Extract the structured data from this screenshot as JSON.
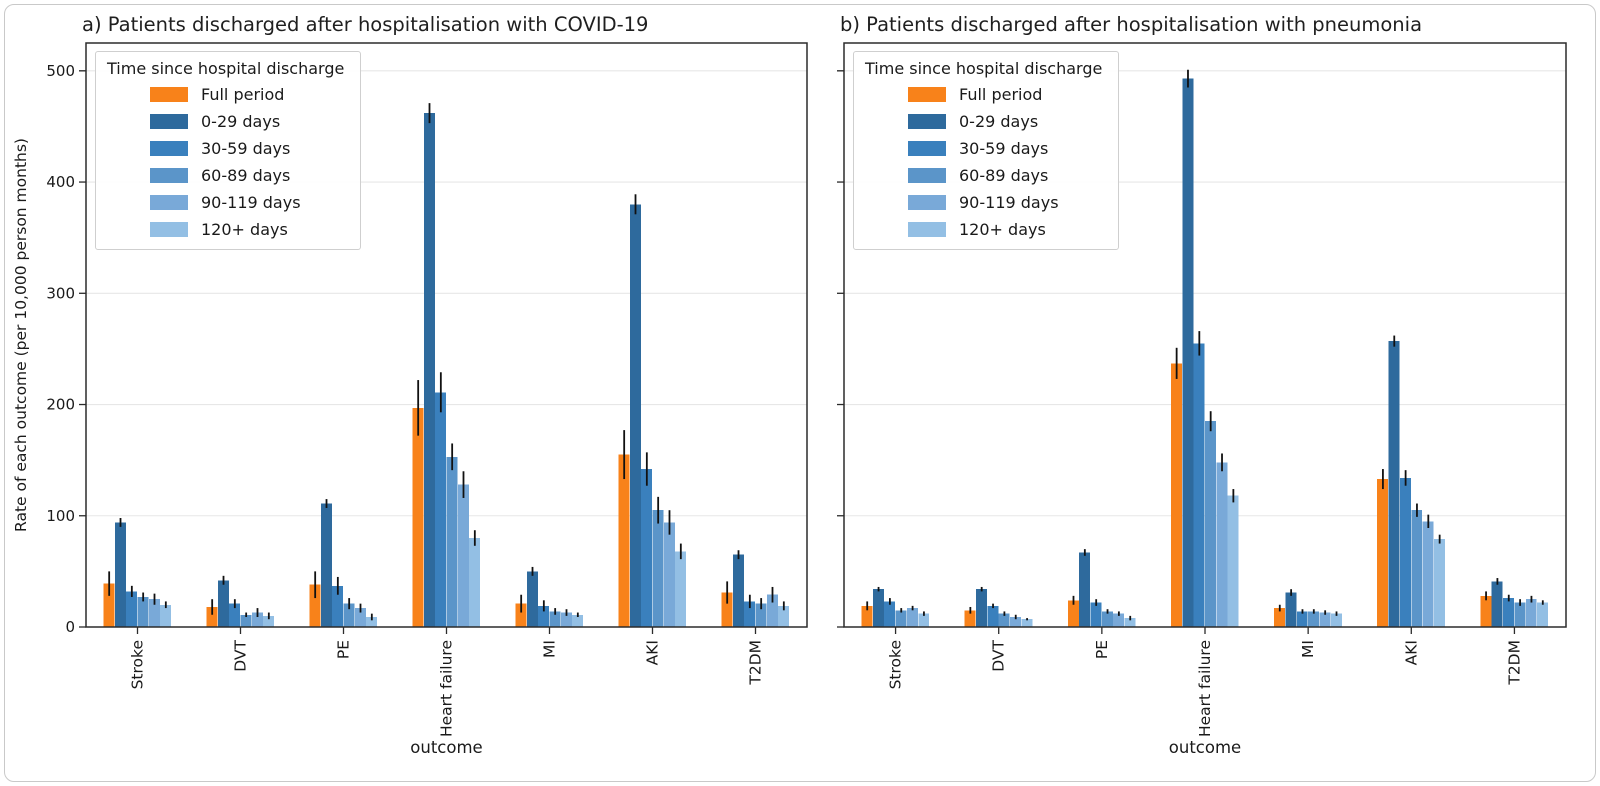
{
  "figure": {
    "background": "#ffffff",
    "border_color": "#c9c9c9",
    "text_color": "#1a1a1a",
    "grid_color": "#e7e7e7",
    "spine_color": "#2b2b2b",
    "errorbar_color": "#111111"
  },
  "chart_data": [
    {
      "type": "bar",
      "title": "a) Patients discharged after hospitalisation with COVID-19",
      "xlabel": "outcome",
      "ylabel": "Rate of each outcome (per 10,000 person months)",
      "legend_title": "Time since hospital discharge",
      "legend_position": "upper left",
      "grid": "horizontal",
      "ylim": [
        0,
        525
      ],
      "yticks": [
        0,
        100,
        200,
        300,
        400,
        500
      ],
      "show_ytick_labels": true,
      "categories": [
        "Stroke",
        "DVT",
        "PE",
        "Heart failure",
        "MI",
        "AKI",
        "T2DM"
      ],
      "series": [
        {
          "name": "Full period",
          "color": "#f8821a",
          "values": [
            39,
            18,
            38,
            197,
            21,
            155,
            31
          ],
          "errors": [
            11,
            7,
            12,
            25,
            8,
            22,
            10
          ]
        },
        {
          "name": "0-29 days",
          "color": "#2e6a9d",
          "values": [
            94,
            42,
            111,
            462,
            50,
            380,
            65
          ],
          "errors": [
            4,
            4,
            4,
            9,
            4,
            9,
            4
          ]
        },
        {
          "name": "30-59 days",
          "color": "#3a80bd",
          "values": [
            32,
            21,
            37,
            211,
            19,
            142,
            23
          ],
          "errors": [
            5,
            4,
            8,
            18,
            5,
            15,
            6
          ]
        },
        {
          "name": "60-89 days",
          "color": "#5b95c9",
          "values": [
            27,
            11,
            21,
            153,
            14,
            105,
            21
          ],
          "errors": [
            4,
            2,
            5,
            12,
            3,
            12,
            5
          ]
        },
        {
          "name": "90-119 days",
          "color": "#79a9d8",
          "values": [
            25,
            13,
            17,
            128,
            13,
            94,
            29
          ],
          "errors": [
            5,
            4,
            4,
            12,
            3,
            11,
            7
          ]
        },
        {
          "name": "120+ days",
          "color": "#93bfe4",
          "values": [
            20,
            10,
            9,
            80,
            11,
            68,
            19
          ],
          "errors": [
            3,
            3,
            3,
            7,
            2,
            7,
            4
          ]
        }
      ]
    },
    {
      "type": "bar",
      "title": "b) Patients discharged after hospitalisation with pneumonia",
      "xlabel": "outcome",
      "ylabel": "Rate of each outcome (per 10,000 person months)",
      "legend_title": "Time since hospital discharge",
      "legend_position": "upper left",
      "grid": "horizontal",
      "ylim": [
        0,
        525
      ],
      "yticks": [
        0,
        100,
        200,
        300,
        400,
        500
      ],
      "show_ytick_labels": false,
      "categories": [
        "Stroke",
        "DVT",
        "PE",
        "Heart failure",
        "MI",
        "AKI",
        "T2DM"
      ],
      "series": [
        {
          "name": "Full period",
          "color": "#f8821a",
          "values": [
            19,
            15,
            24,
            237,
            17,
            133,
            28
          ],
          "errors": [
            4,
            3,
            4,
            14,
            3,
            9,
            4
          ]
        },
        {
          "name": "0-29 days",
          "color": "#2e6a9d",
          "values": [
            34,
            34,
            67,
            493,
            31,
            257,
            41
          ],
          "errors": [
            2,
            2,
            3,
            8,
            3,
            5,
            3
          ]
        },
        {
          "name": "30-59 days",
          "color": "#3a80bd",
          "values": [
            23,
            19,
            22,
            255,
            14,
            134,
            26
          ],
          "errors": [
            3,
            2,
            3,
            11,
            2,
            7,
            3
          ]
        },
        {
          "name": "60-89 days",
          "color": "#5b95c9",
          "values": [
            15,
            12,
            14,
            185,
            14,
            105,
            22
          ],
          "errors": [
            2,
            2,
            2,
            9,
            2,
            6,
            3
          ]
        },
        {
          "name": "90-119 days",
          "color": "#79a9d8",
          "values": [
            17,
            9,
            12,
            148,
            13,
            95,
            25
          ],
          "errors": [
            2,
            2,
            2,
            8,
            2,
            6,
            3
          ]
        },
        {
          "name": "120+ days",
          "color": "#93bfe4",
          "values": [
            12,
            7,
            8,
            118,
            12,
            79,
            22
          ],
          "errors": [
            2,
            1,
            2,
            6,
            2,
            4,
            2
          ]
        }
      ]
    }
  ]
}
